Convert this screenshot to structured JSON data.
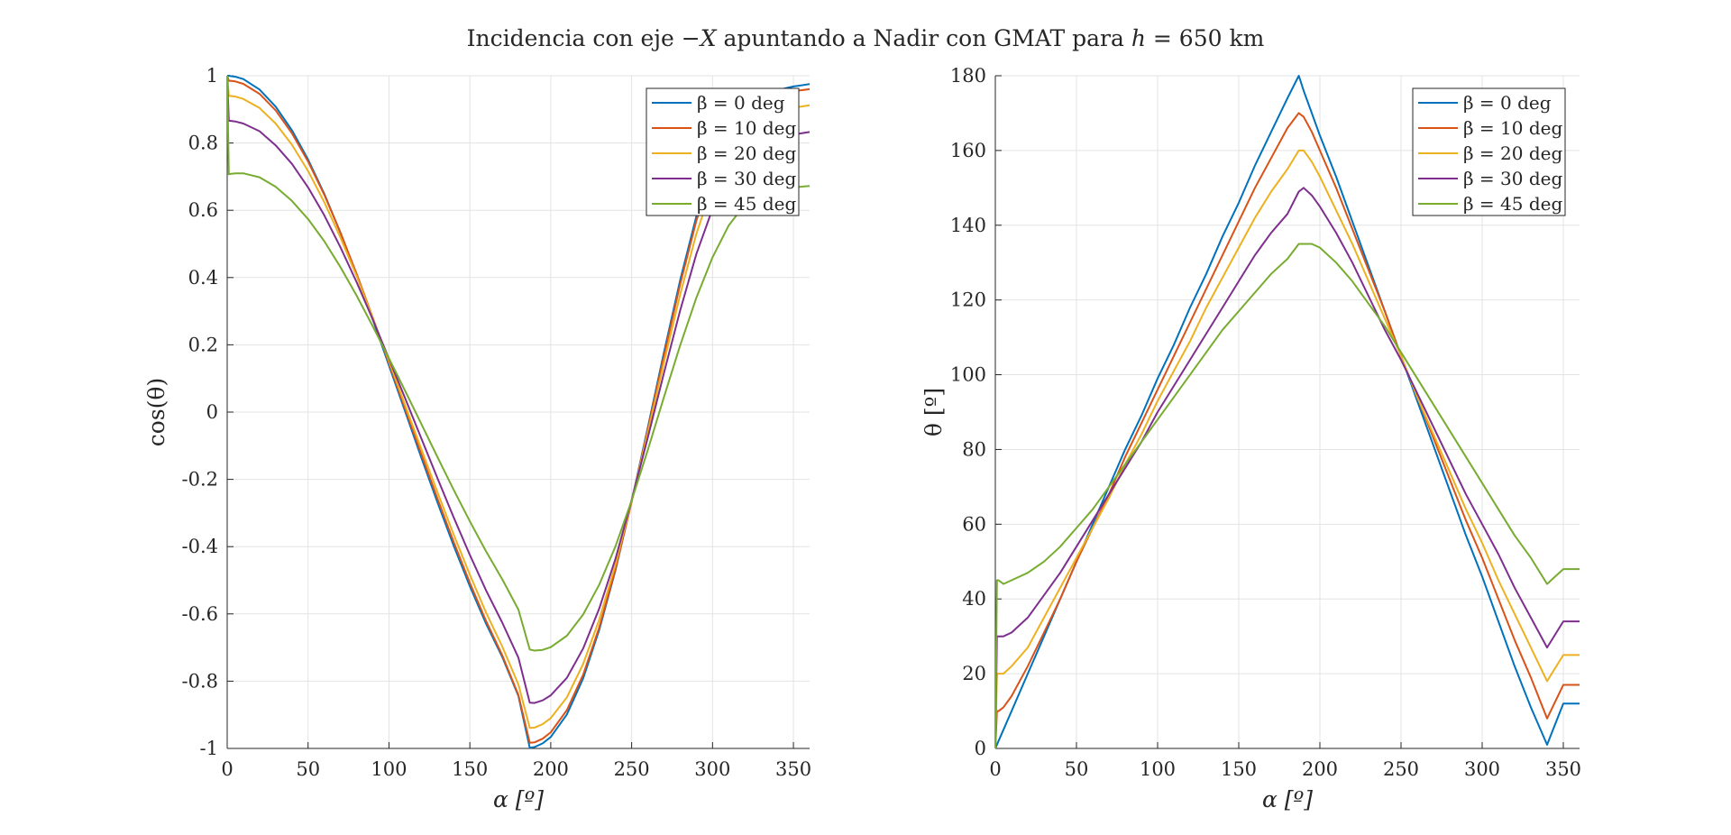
{
  "figure": {
    "title_parts": {
      "prefix": "Incidencia con eje ",
      "axis": "−X",
      "middle": " apuntando a Nadir con GMAT para ",
      "h_var": "h",
      "suffix": " = 650 km"
    }
  },
  "colors": [
    "#0072BD",
    "#D95319",
    "#EDB120",
    "#7E2F8E",
    "#77AC30"
  ],
  "chart_data": [
    {
      "type": "line",
      "xlabel": "α [º]",
      "ylabel": "cos(θ)",
      "xlim": [
        0,
        360
      ],
      "ylim": [
        -1,
        1
      ],
      "grid": true,
      "legend_position": "top-right",
      "x_ticks": [
        0,
        50,
        100,
        150,
        200,
        250,
        300,
        350
      ],
      "x_tick_labels": [
        "0",
        "50",
        "100",
        "150",
        "200",
        "250",
        "300",
        "350"
      ],
      "y_ticks": [
        -1,
        -0.8,
        -0.6,
        -0.4,
        -0.2,
        0,
        0.2,
        0.4,
        0.6,
        0.8,
        1
      ],
      "y_tick_labels": [
        "-1",
        "-0.8",
        "-0.6",
        "-0.4",
        "-0.2",
        "0",
        "0.2",
        "0.4",
        "0.6",
        "0.8",
        "1"
      ],
      "x": [
        0,
        1,
        2,
        5,
        10,
        20,
        30,
        40,
        50,
        60,
        70,
        80,
        90,
        100,
        110,
        120,
        130,
        140,
        150,
        160,
        170,
        180,
        187,
        190,
        195,
        200,
        210,
        220,
        230,
        240,
        250,
        260,
        270,
        280,
        290,
        300,
        310,
        320,
        330,
        340,
        350,
        360
      ],
      "series": [
        {
          "name": "β = 0 deg",
          "values": [
            1,
            1.0,
            0.999,
            0.997,
            0.99,
            0.959,
            0.908,
            0.838,
            0.751,
            0.649,
            0.533,
            0.407,
            0.275,
            0.139,
            0.002,
            -0.135,
            -0.269,
            -0.397,
            -0.518,
            -0.629,
            -0.728,
            -0.844,
            -0.998,
            -0.996,
            -0.985,
            -0.966,
            -0.899,
            -0.792,
            -0.647,
            -0.47,
            -0.265,
            -0.045,
            0.178,
            0.392,
            0.582,
            0.732,
            0.837,
            0.898,
            0.935,
            0.957,
            0.968,
            0.975
          ]
        },
        {
          "name": "β = 10 deg",
          "values": [
            1,
            0.985,
            0.985,
            0.983,
            0.976,
            0.946,
            0.897,
            0.829,
            0.745,
            0.646,
            0.534,
            0.411,
            0.281,
            0.146,
            0.01,
            -0.125,
            -0.258,
            -0.386,
            -0.508,
            -0.621,
            -0.723,
            -0.841,
            -0.983,
            -0.982,
            -0.971,
            -0.952,
            -0.886,
            -0.781,
            -0.64,
            -0.467,
            -0.267,
            -0.051,
            0.168,
            0.38,
            0.569,
            0.718,
            0.823,
            0.886,
            0.922,
            0.943,
            0.954,
            0.96
          ]
        },
        {
          "name": "β = 20 deg",
          "values": [
            1,
            0.94,
            0.94,
            0.938,
            0.931,
            0.904,
            0.858,
            0.795,
            0.717,
            0.624,
            0.519,
            0.404,
            0.28,
            0.152,
            0.02,
            -0.11,
            -0.239,
            -0.364,
            -0.484,
            -0.596,
            -0.697,
            -0.81,
            -0.939,
            -0.938,
            -0.928,
            -0.91,
            -0.848,
            -0.749,
            -0.617,
            -0.453,
            -0.264,
            -0.06,
            0.148,
            0.349,
            0.53,
            0.673,
            0.775,
            0.837,
            0.873,
            0.893,
            0.905,
            0.912
          ]
        },
        {
          "name": "β = 30 deg",
          "values": [
            1,
            0.866,
            0.866,
            0.864,
            0.858,
            0.835,
            0.793,
            0.738,
            0.668,
            0.585,
            0.49,
            0.386,
            0.275,
            0.159,
            0.041,
            -0.078,
            -0.197,
            -0.313,
            -0.425,
            -0.53,
            -0.626,
            -0.73,
            -0.864,
            -0.865,
            -0.857,
            -0.842,
            -0.79,
            -0.703,
            -0.584,
            -0.436,
            -0.261,
            -0.075,
            0.117,
            0.302,
            0.47,
            0.604,
            0.7,
            0.76,
            0.794,
            0.814,
            0.825,
            0.833
          ]
        },
        {
          "name": "β = 45 deg",
          "values": [
            1,
            0.707,
            0.708,
            0.71,
            0.71,
            0.698,
            0.67,
            0.628,
            0.574,
            0.508,
            0.431,
            0.346,
            0.255,
            0.16,
            0.063,
            -0.035,
            -0.134,
            -0.231,
            -0.325,
            -0.414,
            -0.497,
            -0.587,
            -0.706,
            -0.709,
            -0.707,
            -0.699,
            -0.665,
            -0.602,
            -0.513,
            -0.399,
            -0.263,
            -0.112,
            0.045,
            0.198,
            0.34,
            0.46,
            0.555,
            0.617,
            0.648,
            0.66,
            0.668,
            0.672
          ]
        }
      ]
    },
    {
      "type": "line",
      "xlabel": "α [º]",
      "ylabel": "θ [º]",
      "xlim": [
        0,
        360
      ],
      "ylim": [
        0,
        180
      ],
      "grid": true,
      "legend_position": "top-right",
      "x_ticks": [
        0,
        50,
        100,
        150,
        200,
        250,
        300,
        350
      ],
      "x_tick_labels": [
        "0",
        "50",
        "100",
        "150",
        "200",
        "250",
        "300",
        "350"
      ],
      "y_ticks": [
        0,
        20,
        40,
        60,
        80,
        100,
        120,
        140,
        160,
        180
      ],
      "y_tick_labels": [
        "0",
        "20",
        "40",
        "60",
        "80",
        "100",
        "120",
        "140",
        "160",
        "180"
      ],
      "x": [
        0,
        1,
        2,
        5,
        10,
        20,
        30,
        40,
        50,
        60,
        70,
        80,
        90,
        100,
        110,
        120,
        130,
        140,
        150,
        160,
        170,
        180,
        187,
        190,
        195,
        200,
        210,
        220,
        230,
        240,
        250,
        260,
        270,
        280,
        290,
        300,
        310,
        320,
        330,
        340,
        350,
        360
      ],
      "series": [
        {
          "name": "β = 0 deg",
          "values": [
            0,
            1,
            2,
            5,
            10,
            20,
            30,
            40,
            50,
            60,
            70,
            80,
            89,
            99,
            108,
            118,
            127,
            137,
            146,
            156,
            165,
            174,
            180,
            176,
            170,
            164,
            153,
            141,
            129,
            117,
            105,
            93,
            81,
            69,
            57,
            46,
            34,
            22,
            11,
            -1,
            12,
            12
          ]
        },
        {
          "name": "β = 10 deg",
          "values": [
            0,
            10,
            10,
            11,
            14,
            22,
            31,
            40,
            50,
            59,
            68,
            78,
            87,
            96,
            105,
            114,
            123,
            132,
            141,
            150,
            158,
            166,
            170,
            169,
            165,
            160,
            150,
            139,
            128,
            117,
            105,
            94,
            83,
            72,
            61,
            51,
            40,
            29,
            19,
            8,
            17,
            17
          ]
        },
        {
          "name": "β = 20 deg",
          "values": [
            0,
            20,
            20,
            20,
            22,
            27,
            35,
            43,
            51,
            59,
            67,
            76,
            84,
            93,
            101,
            109,
            118,
            126,
            134,
            142,
            149,
            155,
            160,
            160,
            157,
            153,
            144,
            135,
            125,
            115,
            105,
            94,
            84,
            74,
            64,
            55,
            45,
            36,
            27,
            18,
            25,
            25
          ]
        },
        {
          "name": "β = 30 deg",
          "values": [
            0,
            30,
            30,
            30,
            31,
            35,
            41,
            47,
            54,
            61,
            68,
            75,
            82,
            90,
            97,
            104,
            111,
            118,
            125,
            132,
            138,
            143,
            149,
            150,
            148,
            145,
            138,
            130,
            121,
            112,
            104,
            95,
            86,
            77,
            68,
            60,
            52,
            43,
            35,
            27,
            34,
            34
          ]
        },
        {
          "name": "β = 45 deg",
          "values": [
            0,
            45,
            45,
            44,
            45,
            47,
            50,
            54,
            59,
            64,
            70,
            76,
            82,
            88,
            94,
            100,
            106,
            112,
            117,
            122,
            127,
            131,
            135,
            135,
            135,
            134,
            130,
            125,
            119,
            113,
            106,
            99,
            92,
            85,
            78,
            71,
            64,
            57,
            51,
            44,
            48,
            48
          ]
        }
      ]
    }
  ]
}
